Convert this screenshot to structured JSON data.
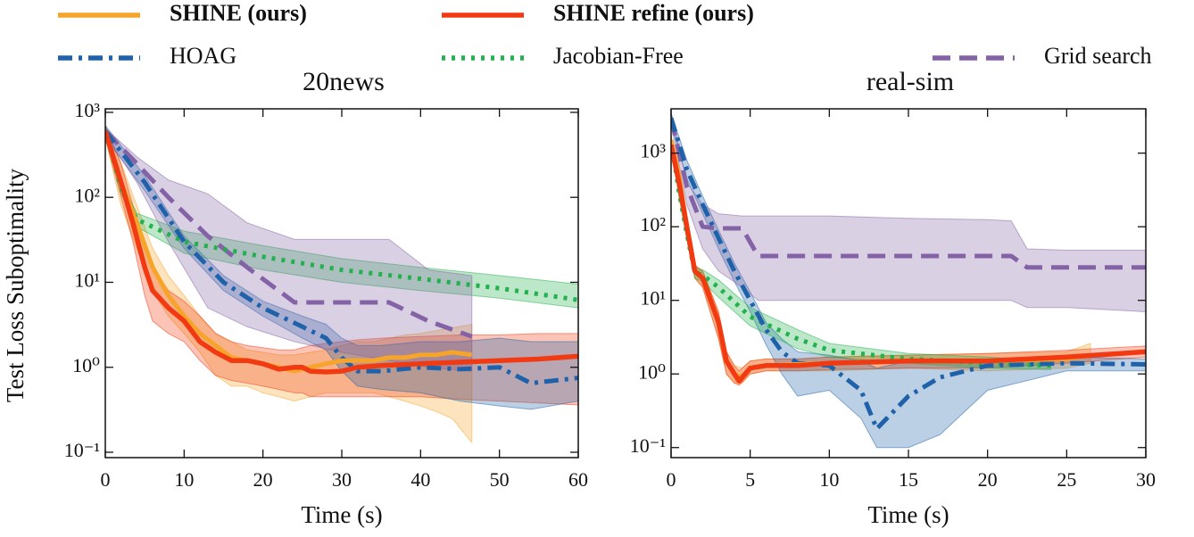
{
  "chart_data": [
    {
      "type": "line",
      "title": "20news",
      "xlabel": "Time (s)",
      "ylabel": "Test Loss Suboptimality",
      "log_y": true,
      "grid": false,
      "xlim": [
        0,
        60
      ],
      "xticks": [
        0,
        10,
        20,
        30,
        40,
        50,
        60
      ],
      "ylim": [
        0.0865,
        1100
      ],
      "yticks": [
        {
          "value": 0.1,
          "label": "10⁻¹"
        },
        {
          "value": 1,
          "label": "10⁰"
        },
        {
          "value": 10,
          "label": "10¹"
        },
        {
          "value": 100,
          "label": "10²"
        },
        {
          "value": 1000,
          "label": "10³"
        }
      ],
      "series": [
        {
          "name": "SHINE (ours)",
          "color": "#f7a42a",
          "dash": "none",
          "bold": true,
          "x": [
            0,
            2,
            4,
            6,
            8,
            10,
            12,
            14,
            16,
            18,
            20,
            22,
            24,
            26,
            28,
            30,
            32,
            34,
            36,
            38,
            40,
            42,
            44,
            46.5
          ],
          "values": [
            600,
            150,
            50,
            15,
            7,
            4,
            2.5,
            1.8,
            1.3,
            1.2,
            1.1,
            1.0,
            0.9,
            1.0,
            1.1,
            1.2,
            1.2,
            1.2,
            1.3,
            1.3,
            1.4,
            1.4,
            1.5,
            1.4
          ],
          "lower": [
            500,
            80,
            25,
            8,
            4,
            2.5,
            1.5,
            0.8,
            0.6,
            0.6,
            0.5,
            0.45,
            0.4,
            0.45,
            0.5,
            0.5,
            0.5,
            0.5,
            0.45,
            0.4,
            0.35,
            0.3,
            0.25,
            0.13
          ],
          "upper": [
            700,
            250,
            80,
            25,
            12,
            7,
            4,
            2.5,
            2,
            1.6,
            1.5,
            1.4,
            1.4,
            1.5,
            1.6,
            1.8,
            2,
            2,
            2.2,
            2.4,
            2.5,
            2.7,
            2.9,
            3.2
          ]
        },
        {
          "name": "SHINE refine (ours)",
          "color": "#f23a12",
          "dash": "none",
          "bold": true,
          "x": [
            0,
            2,
            3.5,
            5,
            6,
            8,
            10,
            12,
            14,
            16,
            18,
            20,
            22,
            24,
            25,
            26,
            28,
            30,
            32,
            35,
            40,
            45,
            50,
            55,
            60
          ],
          "values": [
            600,
            150,
            50,
            15,
            8,
            5,
            3.5,
            2,
            1.5,
            1.2,
            1.2,
            1.1,
            0.95,
            1.0,
            1.0,
            0.9,
            0.88,
            0.9,
            1.0,
            1.05,
            1.1,
            1.15,
            1.2,
            1.25,
            1.35
          ],
          "lower": [
            500,
            100,
            30,
            7,
            3.5,
            2.5,
            2,
            1.2,
            0.8,
            0.7,
            0.65,
            0.6,
            0.55,
            0.5,
            0.5,
            0.45,
            0.45,
            0.45,
            0.45,
            0.45,
            0.45,
            0.42,
            0.4,
            0.38,
            0.36
          ],
          "upper": [
            700,
            250,
            80,
            30,
            15,
            8,
            6,
            4,
            2.5,
            2,
            1.8,
            1.7,
            1.6,
            1.6,
            1.7,
            1.8,
            1.9,
            2,
            2.1,
            2.2,
            2.3,
            2.4,
            2.4,
            2.5,
            2.5
          ]
        },
        {
          "name": "HOAG",
          "color": "#1f62aa",
          "dash": "16,7,4,7",
          "bold": false,
          "x": [
            0,
            5,
            10,
            15,
            20,
            25,
            28,
            30,
            32,
            35,
            40,
            45,
            50,
            54,
            60
          ],
          "values": [
            600,
            150,
            30,
            10,
            5,
            3,
            2.2,
            1.3,
            0.9,
            0.9,
            1.0,
            0.95,
            1.0,
            0.65,
            0.75
          ],
          "lower": [
            500,
            120,
            25,
            8,
            4,
            2.2,
            1.6,
            0.9,
            0.6,
            0.55,
            0.5,
            0.4,
            0.35,
            0.32,
            0.4
          ],
          "upper": [
            700,
            180,
            35,
            12,
            6,
            4,
            3.2,
            2.2,
            1.8,
            1.8,
            2,
            2,
            2.2,
            2,
            2
          ]
        },
        {
          "name": "Jacobian-Free",
          "color": "#22b14c",
          "dash": "4,7",
          "bold": false,
          "x": [
            0,
            2,
            4,
            10,
            20,
            30,
            40,
            50,
            60
          ],
          "values": [
            600,
            130,
            55,
            30,
            20,
            14,
            11,
            8.5,
            6.2
          ],
          "lower": [
            550,
            110,
            45,
            22,
            14,
            10,
            8,
            6.5,
            5
          ],
          "upper": [
            650,
            150,
            65,
            40,
            27,
            19,
            15,
            12,
            9.5
          ]
        },
        {
          "name": "Grid search",
          "color": "#8462a6",
          "dash": "20,10",
          "bold": false,
          "x": [
            0,
            4,
            8,
            13,
            18,
            24,
            30,
            36,
            41,
            46.5
          ],
          "values": [
            600,
            250,
            100,
            35,
            15,
            5.8,
            5.8,
            5.8,
            3.5,
            2.3
          ],
          "lower": [
            550,
            150,
            30,
            5,
            3,
            2,
            1.5,
            1.2,
            1.0,
            0.9
          ],
          "upper": [
            650,
            300,
            160,
            110,
            50,
            32,
            32,
            32,
            14,
            12
          ]
        }
      ]
    },
    {
      "type": "line",
      "title": "real-sim",
      "xlabel": "Time (s)",
      "log_y": true,
      "grid": false,
      "xlim": [
        0,
        30
      ],
      "xticks": [
        0,
        5,
        10,
        15,
        20,
        25,
        30
      ],
      "ylim": [
        0.073,
        4000
      ],
      "yticks": [
        {
          "value": 0.1,
          "label": "10⁻¹"
        },
        {
          "value": 1,
          "label": "10⁰"
        },
        {
          "value": 10,
          "label": "10¹"
        },
        {
          "value": 100,
          "label": "10²"
        },
        {
          "value": 1000,
          "label": "10³"
        }
      ],
      "series": [
        {
          "x": [
            0,
            0.5,
            1,
            1.5,
            2,
            3,
            3.5,
            4,
            4.5,
            5,
            6,
            8,
            10,
            15,
            20,
            25,
            26.5
          ],
          "values": [
            1500,
            500,
            100,
            25,
            20,
            5,
            1.5,
            1.0,
            0.9,
            1.2,
            1.3,
            1.35,
            1.4,
            1.5,
            1.5,
            1.6,
            1.8
          ],
          "lower": [
            1200,
            350,
            70,
            20,
            15,
            3,
            1.0,
            0.75,
            0.75,
            1.0,
            1.1,
            1.1,
            1.1,
            1.2,
            1.1,
            1.2,
            1.4
          ],
          "upper": [
            1800,
            650,
            130,
            30,
            25,
            7,
            2,
            1.3,
            1.2,
            1.5,
            1.6,
            1.6,
            1.7,
            1.8,
            1.9,
            2,
            2.6
          ]
        },
        {
          "x": [
            0,
            0.5,
            1,
            1.5,
            2,
            3,
            3.5,
            4,
            4.3,
            5,
            6,
            8,
            10,
            15,
            20,
            25,
            30
          ],
          "values": [
            1300,
            400,
            100,
            25,
            20,
            5,
            1.5,
            1.0,
            0.8,
            1.2,
            1.3,
            1.3,
            1.4,
            1.5,
            1.5,
            1.7,
            2.0
          ],
          "lower": [
            1100,
            300,
            70,
            20,
            15,
            3,
            1.0,
            0.75,
            0.7,
            1.0,
            1.1,
            1.1,
            1.15,
            1.2,
            1.2,
            1.4,
            1.7
          ],
          "upper": [
            1500,
            500,
            130,
            30,
            25,
            7,
            2,
            1.3,
            1.1,
            1.5,
            1.6,
            1.6,
            1.7,
            1.8,
            1.9,
            2.1,
            2.4
          ]
        },
        {
          "x": [
            0,
            1,
            2,
            3,
            4,
            5,
            6,
            7,
            8,
            10,
            12,
            13,
            15,
            17,
            20,
            25,
            30
          ],
          "values": [
            3000,
            600,
            200,
            70,
            25,
            10,
            4,
            2,
            1.4,
            1.3,
            0.6,
            0.18,
            0.5,
            0.9,
            1.3,
            1.4,
            1.35
          ],
          "lower": [
            2500,
            450,
            150,
            50,
            18,
            7,
            2.5,
            1,
            0.5,
            0.6,
            0.25,
            0.1,
            0.1,
            0.15,
            0.6,
            1.1,
            1.1
          ],
          "upper": [
            3500,
            800,
            260,
            90,
            32,
            13,
            5,
            3,
            2,
            1.8,
            1.5,
            1.2,
            1.5,
            1.5,
            1.6,
            1.7,
            1.6
          ]
        },
        {
          "x": [
            0,
            0.5,
            1,
            1.5,
            2,
            3,
            5,
            8,
            10,
            15,
            20,
            24
          ],
          "values": [
            1500,
            300,
            80,
            24,
            22,
            15,
            6,
            3,
            2.1,
            1.6,
            1.4,
            1.3
          ],
          "lower": [
            1300,
            250,
            65,
            20,
            18,
            11,
            4.5,
            2.2,
            1.7,
            1.4,
            1.2,
            1.15
          ],
          "upper": [
            1700,
            350,
            95,
            28,
            26,
            19,
            8,
            4,
            2.6,
            1.9,
            1.7,
            1.5
          ]
        },
        {
          "x": [
            0,
            1,
            2,
            3,
            4.5,
            5.5,
            10,
            15,
            20,
            21.5,
            22.5,
            25,
            30
          ],
          "values": [
            3000,
            350,
            100,
            95,
            95,
            40,
            40,
            40,
            40,
            40,
            28,
            28,
            28
          ],
          "lower": [
            2500,
            200,
            50,
            25,
            15,
            10,
            10,
            10,
            10,
            10,
            8,
            8,
            7
          ],
          "upper": [
            3500,
            400,
            200,
            150,
            140,
            140,
            140,
            130,
            125,
            120,
            50,
            48,
            48
          ]
        }
      ]
    }
  ]
}
